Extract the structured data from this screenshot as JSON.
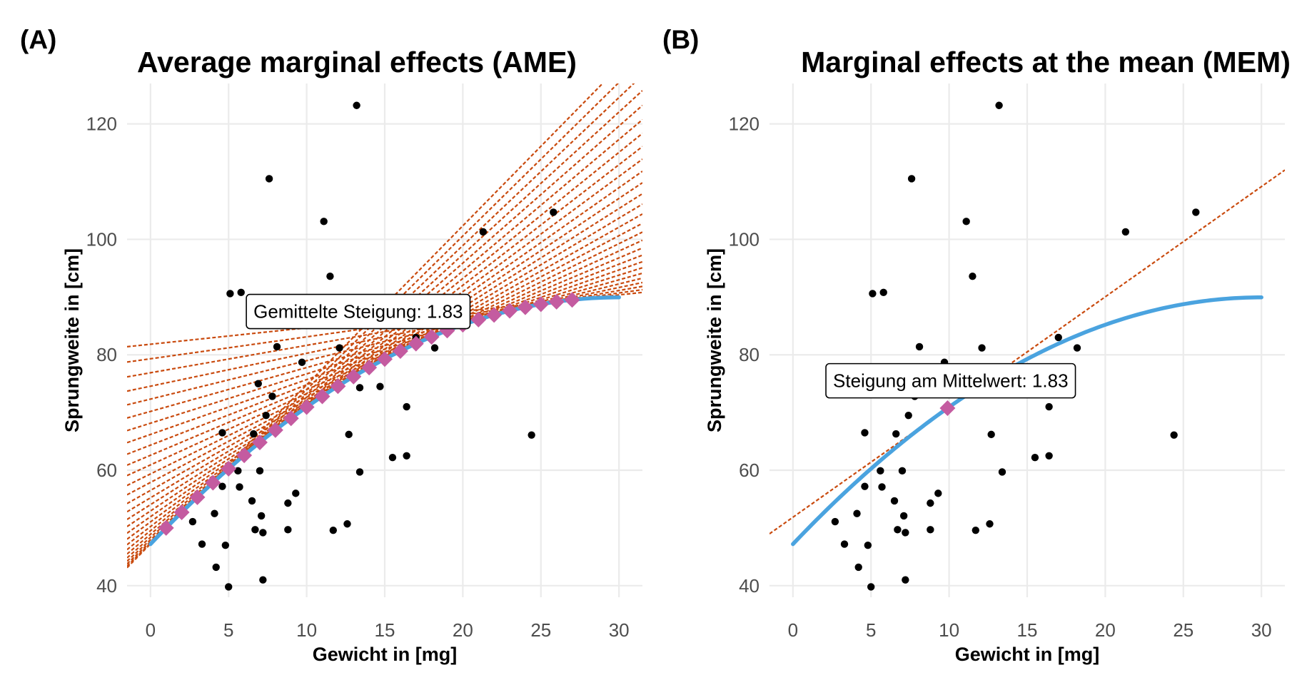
{
  "chart_data": [
    {
      "panel_tag": "(A)",
      "type": "scatter",
      "title": "Average marginal effects (AME)",
      "xlabel": "Gewicht in [mg]",
      "ylabel": "Sprungweite in [cm]",
      "xlim": [
        -1.5,
        31.5
      ],
      "ylim": [
        38,
        127
      ],
      "x_ticks": [
        0,
        5,
        10,
        15,
        20,
        25,
        30
      ],
      "y_ticks": [
        40,
        60,
        80,
        100,
        120
      ],
      "grid": true,
      "annotation": {
        "text": "Gemittelte Steigung: 1.83",
        "x": 13.3,
        "y": 87.5
      },
      "fit_curve": {
        "name": "fit",
        "color": "#4aa3df",
        "x_from": 0,
        "x_to": 30,
        "y_at_0": 47.2,
        "slope_at_0": 2.85,
        "y_at_max": 90.0
      },
      "tangent_points_x": [
        1,
        2,
        3,
        4,
        5,
        6,
        7,
        8,
        9,
        10,
        11,
        12,
        13,
        14,
        15,
        16,
        17,
        18,
        19,
        20,
        21,
        22,
        23,
        24,
        25,
        26,
        27
      ],
      "marker_color": "#c45ba0",
      "tangent_color": "#c94a0e",
      "points": [
        [
          2.7,
          51.1
        ],
        [
          3.3,
          47.2
        ],
        [
          4.1,
          52.5
        ],
        [
          4.2,
          43.2
        ],
        [
          4.6,
          57.2
        ],
        [
          4.6,
          66.5
        ],
        [
          4.8,
          47.0
        ],
        [
          5.0,
          39.8
        ],
        [
          5.1,
          90.6
        ],
        [
          5.6,
          59.9
        ],
        [
          5.7,
          57.1
        ],
        [
          5.8,
          90.8
        ],
        [
          6.5,
          54.7
        ],
        [
          6.6,
          66.3
        ],
        [
          6.7,
          49.7
        ],
        [
          6.9,
          75.0
        ],
        [
          7.0,
          59.9
        ],
        [
          7.1,
          52.1
        ],
        [
          7.2,
          49.2
        ],
        [
          7.2,
          41.0
        ],
        [
          7.4,
          69.5
        ],
        [
          7.6,
          110.5
        ],
        [
          7.8,
          72.8
        ],
        [
          8.1,
          81.4
        ],
        [
          8.8,
          54.3
        ],
        [
          8.8,
          49.7
        ],
        [
          9.3,
          56.0
        ],
        [
          9.7,
          78.7
        ],
        [
          11.1,
          103.1
        ],
        [
          11.5,
          93.6
        ],
        [
          11.7,
          49.6
        ],
        [
          12.1,
          81.2
        ],
        [
          12.6,
          50.7
        ],
        [
          12.7,
          66.2
        ],
        [
          13.2,
          123.2
        ],
        [
          13.4,
          74.3
        ],
        [
          13.4,
          59.7
        ],
        [
          14.7,
          74.5
        ],
        [
          15.5,
          62.2
        ],
        [
          16.4,
          62.5
        ],
        [
          16.4,
          71.0
        ],
        [
          17.0,
          83.0
        ],
        [
          18.2,
          81.2
        ],
        [
          21.3,
          101.3
        ],
        [
          24.4,
          66.1
        ],
        [
          25.8,
          104.7
        ]
      ]
    },
    {
      "panel_tag": "(B)",
      "type": "scatter",
      "title": "Marginal effects at the mean (MEM)",
      "xlabel": "Gewicht in [mg]",
      "ylabel": "Sprungweite in [cm]",
      "xlim": [
        -1.5,
        31.5
      ],
      "ylim": [
        38,
        127
      ],
      "x_ticks": [
        0,
        5,
        10,
        15,
        20,
        25,
        30
      ],
      "y_ticks": [
        40,
        60,
        80,
        100,
        120
      ],
      "grid": true,
      "annotation": {
        "text": "Steigung am Mittelwert: 1.83",
        "x": 10.1,
        "y": 75.5
      },
      "fit_curve": {
        "name": "fit",
        "color": "#4aa3df",
        "x_from": 0,
        "x_to": 30,
        "y_at_0": 47.2,
        "slope_at_0": 2.85,
        "y_at_max": 90.0
      },
      "tangent_points_x": [
        9.9
      ],
      "marker_color": "#c45ba0",
      "tangent_color": "#c94a0e",
      "points": [
        [
          2.7,
          51.1
        ],
        [
          3.3,
          47.2
        ],
        [
          4.1,
          52.5
        ],
        [
          4.2,
          43.2
        ],
        [
          4.6,
          57.2
        ],
        [
          4.6,
          66.5
        ],
        [
          4.8,
          47.0
        ],
        [
          5.0,
          39.8
        ],
        [
          5.1,
          90.6
        ],
        [
          5.6,
          59.9
        ],
        [
          5.7,
          57.1
        ],
        [
          5.8,
          90.8
        ],
        [
          6.5,
          54.7
        ],
        [
          6.6,
          66.3
        ],
        [
          6.7,
          49.7
        ],
        [
          6.9,
          75.0
        ],
        [
          7.0,
          59.9
        ],
        [
          7.1,
          52.1
        ],
        [
          7.2,
          49.2
        ],
        [
          7.2,
          41.0
        ],
        [
          7.4,
          69.5
        ],
        [
          7.6,
          110.5
        ],
        [
          7.8,
          72.8
        ],
        [
          8.1,
          81.4
        ],
        [
          8.8,
          54.3
        ],
        [
          8.8,
          49.7
        ],
        [
          9.3,
          56.0
        ],
        [
          9.7,
          78.7
        ],
        [
          11.1,
          103.1
        ],
        [
          11.5,
          93.6
        ],
        [
          11.7,
          49.6
        ],
        [
          12.1,
          81.2
        ],
        [
          12.6,
          50.7
        ],
        [
          12.7,
          66.2
        ],
        [
          13.2,
          123.2
        ],
        [
          13.4,
          74.3
        ],
        [
          13.4,
          59.7
        ],
        [
          14.7,
          74.5
        ],
        [
          15.5,
          62.2
        ],
        [
          16.4,
          62.5
        ],
        [
          16.4,
          71.0
        ],
        [
          17.0,
          83.0
        ],
        [
          18.2,
          81.2
        ],
        [
          21.3,
          101.3
        ],
        [
          24.4,
          66.1
        ],
        [
          25.8,
          104.7
        ]
      ]
    }
  ]
}
